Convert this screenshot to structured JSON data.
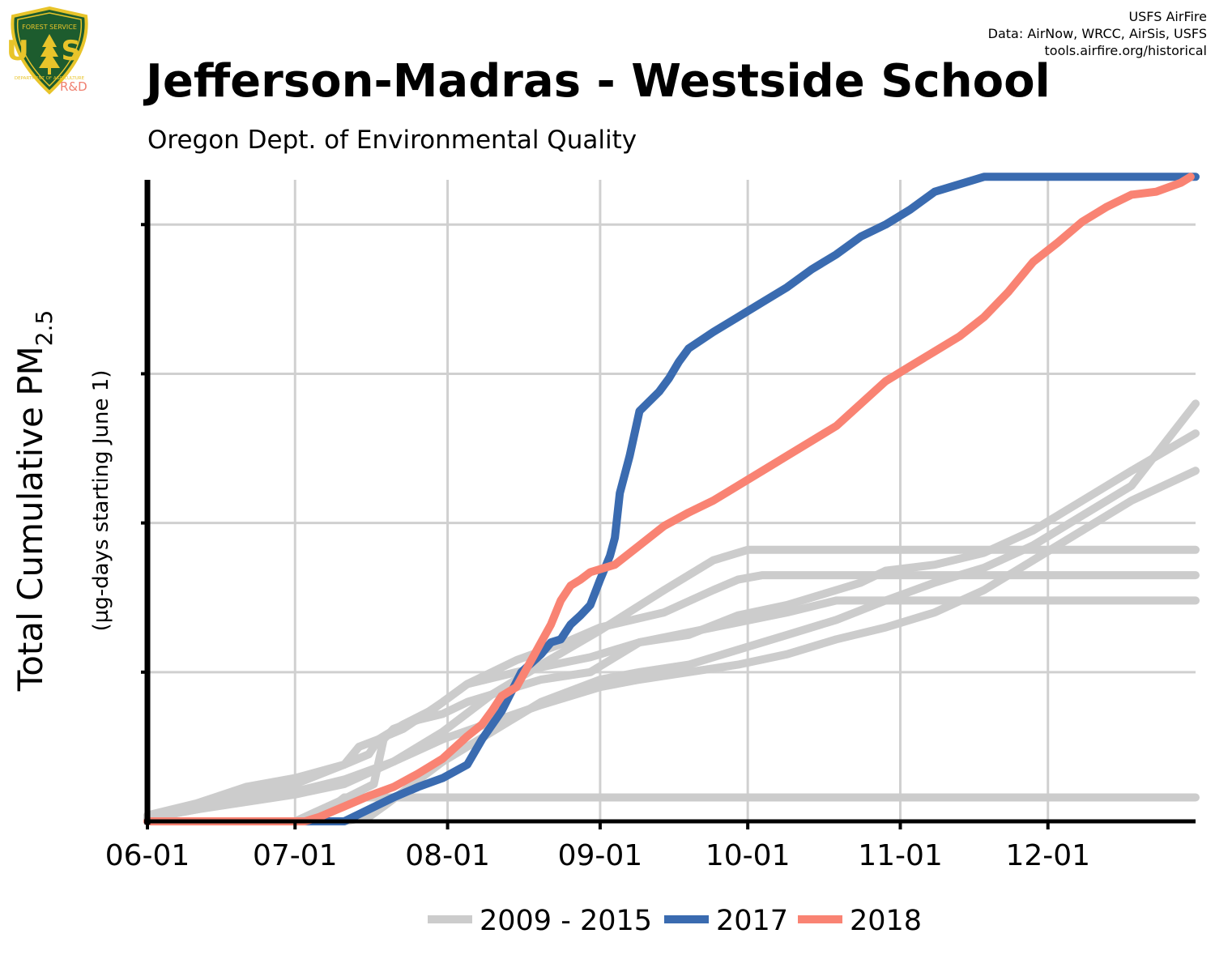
{
  "header": {
    "credit_lines": [
      "USFS AirFire",
      "Data: AirNow, WRCC, AirSis, USFS",
      "tools.airfire.org/historical"
    ],
    "logo": {
      "icon": "usfs-shield-logo",
      "top_text": "FOREST SERVICE",
      "letters": "U S",
      "bottom_text": "DEPARTMENT OF AGRICULTURE",
      "tag": "R&D"
    },
    "title": "Jefferson-Madras - Westside School",
    "subtitle": "Oregon Dept. of Environmental Quality"
  },
  "colors": {
    "history": "#cccccc",
    "y2017": "#3a6bb0",
    "y2018": "#f98373",
    "axis": "#000000",
    "grid": "#d0d0d0"
  },
  "chart_data": {
    "type": "line",
    "title": "Jefferson-Madras - Westside School",
    "subtitle": "Oregon Dept. of Environmental Quality",
    "ylabel": "Total Cumulative PM",
    "ylabel_sub": "2.5",
    "ylabel2": "(µg-days starting June 1)",
    "xlabel": "",
    "x_ticks": [
      "06-01",
      "07-01",
      "08-01",
      "09-01",
      "10-01",
      "11-01",
      "12-01"
    ],
    "x_tick_days": [
      0,
      30,
      61,
      92,
      122,
      153,
      183
    ],
    "xlim": [
      0,
      213
    ],
    "ylim": [
      0,
      4.3
    ],
    "y_ticks": [
      1,
      2,
      3,
      4
    ],
    "y_tick_labels_shown": false,
    "grid": true,
    "legend": {
      "position": "bottom",
      "entries": [
        "2009 - 2015",
        "2017",
        "2018"
      ]
    },
    "series": [
      {
        "name": "2009 - 2015",
        "group": "history",
        "x": [
          0,
          10,
          20,
          30,
          40,
          45,
          47,
          52,
          58,
          65,
          75,
          90,
          100,
          115,
          130,
          140,
          213
        ],
        "y": [
          0.04,
          0.12,
          0.23,
          0.29,
          0.38,
          0.45,
          0.55,
          0.65,
          0.75,
          0.92,
          1.0,
          1.1,
          1.2,
          1.3,
          1.4,
          1.48,
          1.48
        ]
      },
      {
        "name": "2009 - 2015",
        "group": "history",
        "x": [
          0,
          10,
          20,
          30,
          40,
          50,
          60,
          70,
          80,
          92,
          105,
          115,
          122,
          213
        ],
        "y": [
          0.02,
          0.08,
          0.15,
          0.2,
          0.28,
          0.4,
          0.6,
          0.85,
          1.05,
          1.28,
          1.55,
          1.75,
          1.82,
          1.82
        ]
      },
      {
        "name": "2009 - 2015",
        "group": "history",
        "x": [
          0,
          10,
          20,
          30,
          40,
          43,
          47,
          52,
          60,
          65,
          75,
          85,
          92,
          105,
          115,
          120,
          125,
          213
        ],
        "y": [
          0.02,
          0.1,
          0.2,
          0.25,
          0.38,
          0.5,
          0.55,
          0.62,
          0.8,
          0.92,
          1.08,
          1.2,
          1.3,
          1.4,
          1.55,
          1.62,
          1.65,
          1.65
        ]
      },
      {
        "name": "2009 - 2015",
        "group": "history",
        "x": [
          0,
          10,
          20,
          30,
          40,
          60,
          80,
          92,
          100,
          110,
          120,
          130,
          140,
          150,
          160,
          170,
          180,
          190,
          200,
          213
        ],
        "y": [
          0.02,
          0.08,
          0.13,
          0.18,
          0.25,
          0.55,
          0.78,
          0.9,
          0.95,
          1.0,
          1.05,
          1.12,
          1.22,
          1.3,
          1.4,
          1.55,
          1.75,
          1.95,
          2.15,
          2.35
        ]
      },
      {
        "name": "2009 - 2015",
        "group": "history",
        "x": [
          0,
          30,
          40,
          46,
          48,
          50,
          55,
          60,
          65,
          70,
          80,
          90,
          100,
          110,
          120,
          130,
          140,
          145,
          150,
          160,
          170,
          180,
          190,
          200,
          213
        ],
        "y": [
          0,
          0,
          0.15,
          0.25,
          0.55,
          0.62,
          0.68,
          0.72,
          0.8,
          0.85,
          0.95,
          1.0,
          1.2,
          1.25,
          1.38,
          1.45,
          1.55,
          1.6,
          1.68,
          1.72,
          1.8,
          1.95,
          2.15,
          2.35,
          2.6
        ]
      },
      {
        "name": "2009 - 2015",
        "group": "history",
        "x": [
          30,
          40,
          45,
          48,
          52,
          60,
          80,
          92,
          100,
          110,
          120,
          130,
          140,
          150,
          160,
          170,
          180,
          190,
          200,
          213
        ],
        "y": [
          0,
          0,
          0.03,
          0.1,
          0.2,
          0.4,
          0.8,
          0.95,
          1.0,
          1.05,
          1.15,
          1.25,
          1.35,
          1.48,
          1.6,
          1.7,
          1.85,
          2.05,
          2.25,
          2.8
        ]
      },
      {
        "name": "2009 - 2015",
        "group": "history",
        "x": [
          30,
          35,
          40,
          213
        ],
        "y": [
          0,
          0.03,
          0.16,
          0.16
        ]
      },
      {
        "name": "2017",
        "group": "y2017",
        "x": [
          0,
          35,
          40,
          45,
          50,
          55,
          60,
          65,
          68,
          72,
          76,
          80,
          82,
          84,
          86,
          88,
          90,
          92,
          94,
          95,
          96,
          98,
          100,
          104,
          106,
          108,
          110,
          115,
          120,
          125,
          130,
          135,
          140,
          145,
          150,
          155,
          160,
          170,
          175,
          180,
          190,
          200,
          213
        ],
        "y": [
          0,
          0,
          0,
          0.08,
          0.16,
          0.23,
          0.29,
          0.38,
          0.55,
          0.74,
          1.0,
          1.12,
          1.2,
          1.22,
          1.32,
          1.38,
          1.45,
          1.62,
          1.78,
          1.9,
          2.2,
          2.45,
          2.75,
          2.88,
          2.97,
          3.08,
          3.17,
          3.28,
          3.38,
          3.48,
          3.58,
          3.7,
          3.8,
          3.92,
          4.0,
          4.1,
          4.22,
          4.32,
          4.32,
          4.32,
          4.32,
          4.32,
          4.32
        ]
      },
      {
        "name": "2018",
        "group": "y2018",
        "x": [
          0,
          32,
          35,
          40,
          45,
          50,
          55,
          60,
          65,
          68,
          70,
          72,
          75,
          78,
          80,
          82,
          84,
          86,
          88,
          90,
          95,
          100,
          105,
          110,
          115,
          120,
          125,
          130,
          135,
          140,
          145,
          150,
          155,
          160,
          165,
          170,
          175,
          180,
          185,
          190,
          195,
          200,
          205,
          210,
          212
        ],
        "y": [
          0,
          0,
          0.03,
          0.1,
          0.17,
          0.23,
          0.32,
          0.42,
          0.57,
          0.65,
          0.74,
          0.84,
          0.9,
          1.08,
          1.2,
          1.32,
          1.48,
          1.58,
          1.62,
          1.67,
          1.72,
          1.85,
          1.98,
          2.07,
          2.15,
          2.25,
          2.35,
          2.45,
          2.55,
          2.65,
          2.8,
          2.95,
          3.05,
          3.15,
          3.25,
          3.38,
          3.55,
          3.75,
          3.88,
          4.02,
          4.12,
          4.2,
          4.22,
          4.28,
          4.32
        ]
      }
    ]
  }
}
